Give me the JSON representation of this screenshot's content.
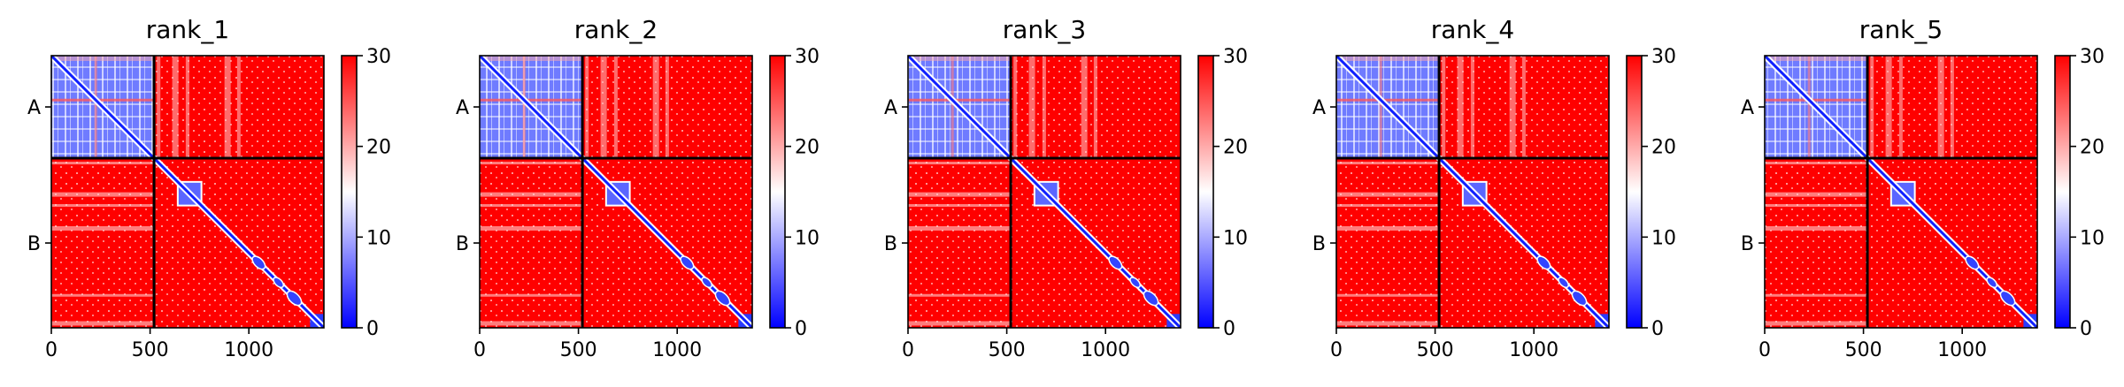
{
  "chart_data": [
    {
      "type": "heatmap",
      "title": "rank_1",
      "x": {
        "ticks": [
          0,
          500,
          1000
        ],
        "range": [
          0,
          1380
        ]
      },
      "y": {
        "ticks": [
          "A",
          "B"
        ]
      },
      "chains": [
        {
          "name": "A",
          "length": 520
        },
        {
          "name": "B",
          "length": 860
        }
      ],
      "colorbar": {
        "range": [
          0,
          30
        ],
        "ticks": [
          0,
          10,
          20,
          30
        ],
        "colormap": "bwr"
      }
    },
    {
      "type": "heatmap",
      "title": "rank_2",
      "x": {
        "ticks": [
          0,
          500,
          1000
        ],
        "range": [
          0,
          1380
        ]
      },
      "y": {
        "ticks": [
          "A",
          "B"
        ]
      },
      "chains": [
        {
          "name": "A",
          "length": 520
        },
        {
          "name": "B",
          "length": 860
        }
      ],
      "colorbar": {
        "range": [
          0,
          30
        ],
        "ticks": [
          0,
          10,
          20,
          30
        ],
        "colormap": "bwr"
      }
    },
    {
      "type": "heatmap",
      "title": "rank_3",
      "x": {
        "ticks": [
          0,
          500,
          1000
        ],
        "range": [
          0,
          1380
        ]
      },
      "y": {
        "ticks": [
          "A",
          "B"
        ]
      },
      "chains": [
        {
          "name": "A",
          "length": 520
        },
        {
          "name": "B",
          "length": 860
        }
      ],
      "colorbar": {
        "range": [
          0,
          30
        ],
        "ticks": [
          0,
          10,
          20,
          30
        ],
        "colormap": "bwr"
      }
    },
    {
      "type": "heatmap",
      "title": "rank_4",
      "x": {
        "ticks": [
          0,
          500,
          1000
        ],
        "range": [
          0,
          1380
        ]
      },
      "y": {
        "ticks": [
          "A",
          "B"
        ]
      },
      "chains": [
        {
          "name": "A",
          "length": 520
        },
        {
          "name": "B",
          "length": 860
        }
      ],
      "colorbar": {
        "range": [
          0,
          30
        ],
        "ticks": [
          0,
          10,
          20,
          30
        ],
        "colormap": "bwr"
      }
    },
    {
      "type": "heatmap",
      "title": "rank_5",
      "x": {
        "ticks": [
          0,
          500,
          1000
        ],
        "range": [
          0,
          1380
        ]
      },
      "y": {
        "ticks": [
          "A",
          "B"
        ]
      },
      "chains": [
        {
          "name": "A",
          "length": 520
        },
        {
          "name": "B",
          "length": 860
        }
      ],
      "colorbar": {
        "range": [
          0,
          30
        ],
        "ticks": [
          0,
          10,
          20,
          30
        ],
        "colormap": "bwr"
      }
    }
  ]
}
